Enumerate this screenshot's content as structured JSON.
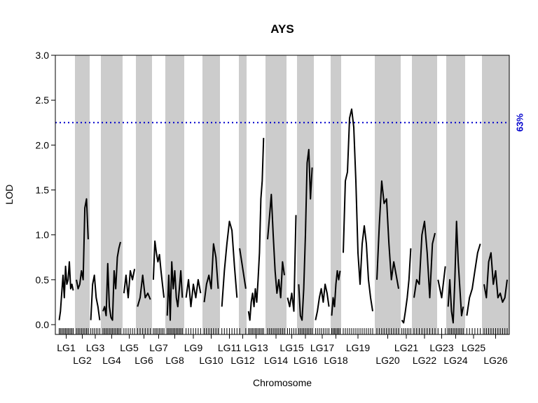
{
  "chart_data": {
    "type": "line",
    "title": "AYS",
    "xlabel": "Chromosome",
    "ylabel": "LOD",
    "ylim": [
      0,
      3
    ],
    "yticks": [
      "0.0",
      "0.5",
      "1.0",
      "1.5",
      "2.0",
      "2.5",
      "3.0"
    ],
    "threshold": {
      "value": 2.25,
      "label": "63%",
      "color": "#0000cc"
    },
    "colors": {
      "band": "#cccccc",
      "line": "#000000",
      "threshold": "#0000cc"
    },
    "chromosomes": [
      {
        "name": "LG1",
        "lod": [
          0.05,
          0.15,
          0.35,
          0.55,
          0.3,
          0.65,
          0.45,
          0.5,
          0.7,
          0.4,
          0.45,
          0.38
        ]
      },
      {
        "name": "LG2",
        "lod": [
          0.5,
          0.4,
          0.45,
          0.6,
          0.5,
          1.3,
          1.4,
          0.95
        ]
      },
      {
        "name": "LG3",
        "lod": [
          0.05,
          0.45,
          0.55,
          0.3,
          0.2,
          0.05
        ]
      },
      {
        "name": "LG4",
        "lod": [
          0.15,
          0.2,
          0.1,
          0.68,
          0.2,
          0.08,
          0.05,
          0.6,
          0.4,
          0.75,
          0.85,
          0.92
        ]
      },
      {
        "name": "LG5",
        "lod": [
          0.35,
          0.55,
          0.3,
          0.6,
          0.5,
          0.62
        ]
      },
      {
        "name": "LG6",
        "lod": [
          0.2,
          0.3,
          0.55,
          0.3,
          0.35,
          0.28
        ]
      },
      {
        "name": "LG7",
        "lod": [
          0.5,
          0.93,
          0.8,
          0.7,
          0.78,
          0.6,
          0.45,
          0.3
        ]
      },
      {
        "name": "LG8",
        "lod": [
          0.1,
          0.55,
          0.05,
          0.7,
          0.4,
          0.6,
          0.3,
          0.2,
          0.4,
          0.6,
          0.3
        ]
      },
      {
        "name": "LG9",
        "lod": [
          0.3,
          0.5,
          0.2,
          0.45,
          0.3,
          0.5,
          0.35
        ]
      },
      {
        "name": "LG10",
        "lod": [
          0.25,
          0.45,
          0.55,
          0.4,
          0.9,
          0.75,
          0.4
        ]
      },
      {
        "name": "LG11",
        "lod": [
          0.2,
          0.6,
          0.9,
          1.15,
          1.05,
          0.65,
          0.3
        ]
      },
      {
        "name": "LG12",
        "lod": [
          0.85,
          0.4
        ]
      },
      {
        "name": "LG13",
        "lod": [
          0.15,
          0.05,
          0.25,
          0.35,
          0.2,
          0.4,
          0.25,
          0.5,
          0.8,
          1.4,
          1.6,
          2.08
        ]
      },
      {
        "name": "LG14",
        "lod": [
          0.95,
          1.2,
          1.45,
          1.0,
          0.6,
          0.35,
          0.5,
          0.3,
          0.7,
          0.55
        ]
      },
      {
        "name": "LG15",
        "lod": [
          0.3,
          0.2,
          0.35,
          0.15,
          1.22
        ]
      },
      {
        "name": "LG16",
        "lod": [
          0.45,
          0.1,
          0.05,
          0.4,
          1.0,
          1.8,
          1.95,
          1.4,
          1.75
        ]
      },
      {
        "name": "LG17",
        "lod": [
          0.05,
          0.15,
          0.3,
          0.4,
          0.25,
          0.45,
          0.35,
          0.2
        ]
      },
      {
        "name": "LG18",
        "lod": [
          0.1,
          0.3,
          0.2,
          0.45,
          0.6,
          0.5,
          0.6
        ]
      },
      {
        "name": "LG19",
        "lod": [
          0.8,
          1.6,
          1.7,
          2.3,
          2.4,
          2.2,
          1.6,
          0.8,
          0.45,
          0.9,
          1.1,
          0.9,
          0.5,
          0.3,
          0.15
        ]
      },
      {
        "name": "LG20",
        "lod": [
          0.5,
          1.1,
          1.6,
          1.35,
          1.4,
          0.9,
          0.5,
          0.7,
          0.55,
          0.4
        ]
      },
      {
        "name": "LG21",
        "lod": [
          0.05,
          0.02,
          0.15,
          0.3,
          0.5,
          0.85
        ]
      },
      {
        "name": "LG22",
        "lod": [
          0.3,
          0.5,
          0.45,
          1.0,
          1.15,
          0.8,
          0.3,
          0.9,
          1.02
        ]
      },
      {
        "name": "LG23",
        "lod": [
          0.5,
          0.3,
          0.65
        ]
      },
      {
        "name": "LG24",
        "lod": [
          0.2,
          0.5,
          0.15,
          0.02,
          0.5,
          1.15,
          0.7,
          0.4,
          0.1,
          0.2
        ]
      },
      {
        "name": "LG25",
        "lod": [
          0.1,
          0.3,
          0.4,
          0.6,
          0.8,
          0.9
        ]
      },
      {
        "name": "LG26",
        "lod": [
          0.45,
          0.3,
          0.7,
          0.8,
          0.45,
          0.6,
          0.3,
          0.35,
          0.25,
          0.3,
          0.5
        ]
      }
    ]
  }
}
